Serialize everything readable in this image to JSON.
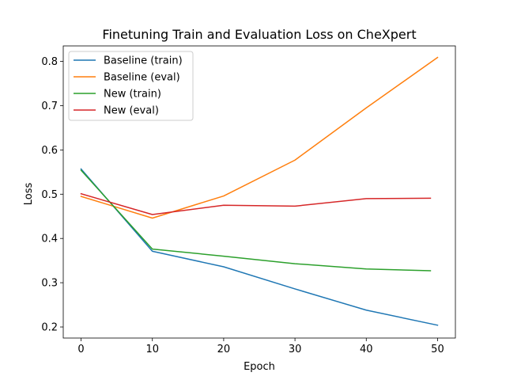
{
  "chart_data": {
    "type": "line",
    "title": "Finetuning Train and Evaluation Loss on CheXpert",
    "xlabel": "Epoch",
    "ylabel": "Loss",
    "xlim": [
      -2.5,
      52.5
    ],
    "ylim": [
      0.175,
      0.835
    ],
    "xticks": [
      0,
      10,
      20,
      30,
      40,
      50
    ],
    "xtick_labels": [
      "0",
      "10",
      "20",
      "30",
      "40",
      "50"
    ],
    "yticks": [
      0.2,
      0.3,
      0.4,
      0.5,
      0.6,
      0.7,
      0.8
    ],
    "ytick_labels": [
      "0.2",
      "0.3",
      "0.4",
      "0.5",
      "0.6",
      "0.7",
      "0.8"
    ],
    "grid": false,
    "legend_position": "upper-left",
    "series": [
      {
        "name": "Baseline (train)",
        "color": "#1f77b4",
        "x": [
          0,
          10,
          20,
          30,
          40,
          50
        ],
        "y": [
          0.557,
          0.371,
          0.336,
          0.286,
          0.238,
          0.204
        ]
      },
      {
        "name": "Baseline (eval)",
        "color": "#ff7f0e",
        "x": [
          0,
          10,
          20,
          30,
          40,
          50
        ],
        "y": [
          0.495,
          0.446,
          0.496,
          0.577,
          0.695,
          0.809
        ]
      },
      {
        "name": "New (train)",
        "color": "#2ca02c",
        "x": [
          0,
          10,
          20,
          30,
          40,
          49
        ],
        "y": [
          0.554,
          0.376,
          0.36,
          0.343,
          0.331,
          0.327
        ]
      },
      {
        "name": "New (eval)",
        "color": "#d62728",
        "x": [
          0,
          10,
          20,
          30,
          40,
          49
        ],
        "y": [
          0.501,
          0.454,
          0.475,
          0.473,
          0.49,
          0.491
        ]
      }
    ]
  }
}
